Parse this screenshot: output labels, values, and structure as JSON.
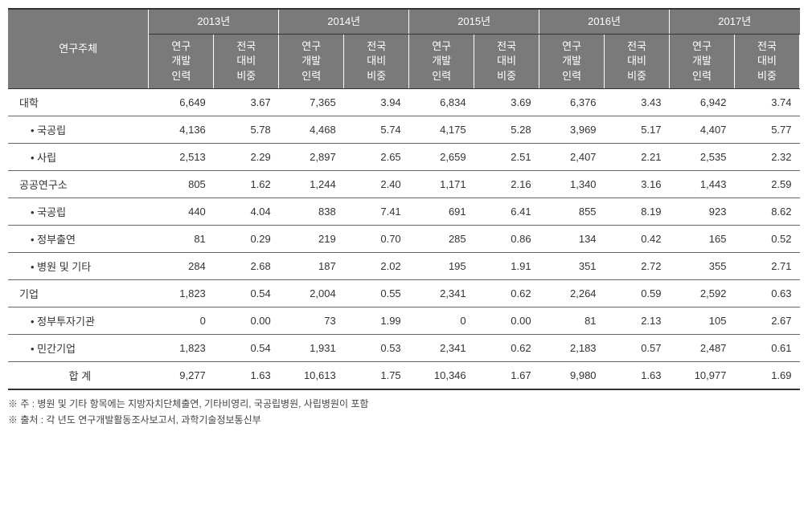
{
  "header": {
    "rowLabel": "연구주체",
    "years": [
      "2013년",
      "2014년",
      "2015년",
      "2016년",
      "2017년"
    ],
    "subCol1": "연구\n개발\n인력",
    "subCol2": "전국\n대비\n비중"
  },
  "rows": [
    {
      "label": "대학",
      "indent": false,
      "values": [
        "6,649",
        "3.67",
        "7,365",
        "3.94",
        "6,834",
        "3.69",
        "6,376",
        "3.43",
        "6,942",
        "3.74"
      ]
    },
    {
      "label": "• 국공립",
      "indent": true,
      "values": [
        "4,136",
        "5.78",
        "4,468",
        "5.74",
        "4,175",
        "5.28",
        "3,969",
        "5.17",
        "4,407",
        "5.77"
      ]
    },
    {
      "label": "• 사립",
      "indent": true,
      "values": [
        "2,513",
        "2.29",
        "2,897",
        "2.65",
        "2,659",
        "2.51",
        "2,407",
        "2.21",
        "2,535",
        "2.32"
      ]
    },
    {
      "label": "공공연구소",
      "indent": false,
      "values": [
        "805",
        "1.62",
        "1,244",
        "2.40",
        "1,171",
        "2.16",
        "1,340",
        "3.16",
        "1,443",
        "2.59"
      ]
    },
    {
      "label": "• 국공립",
      "indent": true,
      "values": [
        "440",
        "4.04",
        "838",
        "7.41",
        "691",
        "6.41",
        "855",
        "8.19",
        "923",
        "8.62"
      ]
    },
    {
      "label": "• 정부출연",
      "indent": true,
      "values": [
        "81",
        "0.29",
        "219",
        "0.70",
        "285",
        "0.86",
        "134",
        "0.42",
        "165",
        "0.52"
      ]
    },
    {
      "label": "• 병원 및 기타",
      "indent": true,
      "values": [
        "284",
        "2.68",
        "187",
        "2.02",
        "195",
        "1.91",
        "351",
        "2.72",
        "355",
        "2.71"
      ]
    },
    {
      "label": "기업",
      "indent": false,
      "values": [
        "1,823",
        "0.54",
        "2,004",
        "0.55",
        "2,341",
        "0.62",
        "2,264",
        "0.59",
        "2,592",
        "0.63"
      ]
    },
    {
      "label": "• 정부투자기관",
      "indent": true,
      "values": [
        "0",
        "0.00",
        "73",
        "1.99",
        "0",
        "0.00",
        "81",
        "2.13",
        "105",
        "2.67"
      ]
    },
    {
      "label": "• 민간기업",
      "indent": true,
      "values": [
        "1,823",
        "0.54",
        "1,931",
        "0.53",
        "2,341",
        "0.62",
        "2,183",
        "0.57",
        "2,487",
        "0.61"
      ]
    },
    {
      "label": "합 계",
      "indent": false,
      "total": true,
      "values": [
        "9,277",
        "1.63",
        "10,613",
        "1.75",
        "10,346",
        "1.67",
        "9,980",
        "1.63",
        "10,977",
        "1.69"
      ]
    }
  ],
  "notes": {
    "line1": "※ 주 : 병원 및 기타 항목에는 지방자치단체출연, 기타비영리, 국공립병원, 사립병원이 포함",
    "line2": "※ 출처 : 각 년도 연구개발활동조사보고서, 과학기술정보통신부"
  },
  "styling": {
    "headerBg": "#7a7a7a",
    "headerText": "#ffffff",
    "borderColor": "#666666",
    "borderTopBottom": "#333333",
    "bodyText": "#333333",
    "background": "#ffffff",
    "fontSize": 13,
    "tableWidth": 985
  }
}
